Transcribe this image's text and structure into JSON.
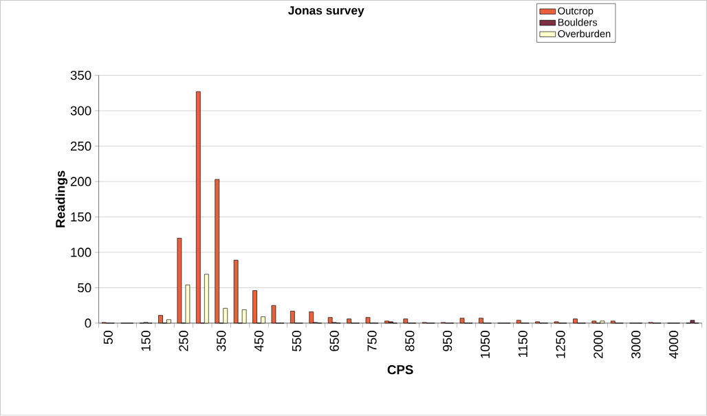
{
  "chart_data": {
    "type": "bar",
    "title": "Jonas survey",
    "xlabel": "CPS",
    "ylabel": "Readings",
    "categories": [
      "50",
      null,
      "150",
      null,
      "250",
      null,
      "350",
      null,
      "450",
      null,
      "550",
      null,
      "650",
      null,
      "750",
      null,
      "850",
      null,
      "950",
      null,
      "1050",
      null,
      "1150",
      null,
      "1250",
      null,
      "2000",
      null,
      "3000",
      null,
      "4000",
      null
    ],
    "series": [
      {
        "name": "Outcrop",
        "color": "#e8603c",
        "values": [
          1,
          0,
          0,
          11,
          120,
          327,
          203,
          89,
          46,
          25,
          17,
          16,
          8,
          6,
          8,
          3,
          6,
          1,
          1,
          7,
          7,
          0,
          4,
          2,
          2,
          6,
          3,
          3,
          0,
          1,
          0,
          0
        ]
      },
      {
        "name": "Boulders",
        "color": "#7a3040",
        "values": [
          0,
          0,
          1,
          0,
          0,
          0,
          0,
          0,
          0,
          0,
          0,
          1,
          1,
          0,
          0,
          2,
          0,
          0,
          0,
          0,
          0,
          0,
          0,
          0,
          0,
          0,
          0,
          0,
          0,
          0,
          0,
          4
        ]
      },
      {
        "name": "Overburden",
        "color": "#ffffcc",
        "values": [
          0,
          0,
          0,
          5,
          54,
          69,
          21,
          19,
          9,
          0,
          0,
          0,
          0,
          0,
          0,
          0,
          0,
          0,
          0,
          0,
          0,
          0,
          0,
          0,
          0,
          0,
          3,
          0,
          0,
          0,
          0,
          0
        ]
      }
    ],
    "ylim": [
      0,
      350
    ],
    "yticks": [
      0,
      50,
      100,
      150,
      200,
      250,
      300,
      350
    ],
    "grid": "y",
    "legend": "top right"
  }
}
